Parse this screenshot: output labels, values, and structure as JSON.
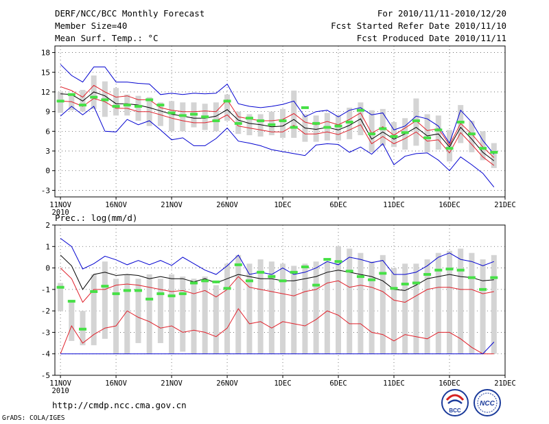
{
  "header": {
    "title_left": "DERF/NCC/BCC Monthly Forecast",
    "member_size": "Member Size=40",
    "variable_label": "Mean Surf. Temp.: °C",
    "forecast_range": "For 2010/11/11-2010/12/20",
    "started_date": "Fcst Started Refer Date 2010/11/10",
    "produced_date": "Fcst Produced Date 2010/11/11"
  },
  "footer": {
    "url": "http://cmdp.ncc.cma.gov.cn",
    "credit": "GrADS: COLA/IGES",
    "logo_bcc_text": "BCC",
    "logo_ncc_text": "NCC"
  },
  "colors": {
    "box": "#d4d4d4",
    "median": "#46e046",
    "mean": "#000000",
    "sd_band": "#e0202a",
    "minmax": "#0000d0",
    "grid": "#555555"
  },
  "chart_data": [
    {
      "id": "temperature",
      "type": "line",
      "title": "Mean Surf. Temp.: °C",
      "xlabel": "",
      "ylabel": "°C",
      "x_tick_labels": [
        "11NOV",
        "16NOV",
        "21NOV",
        "26NOV",
        "1DEC",
        "6DEC",
        "11DEC",
        "16DEC",
        "21DEC"
      ],
      "x_tick_days": [
        0,
        5,
        10,
        15,
        20,
        25,
        30,
        35,
        40
      ],
      "x_year_label": "2010",
      "ylim": [
        -4,
        19
      ],
      "y_ticks": [
        -3,
        0,
        3,
        6,
        9,
        12,
        15,
        18
      ],
      "grid": true,
      "days": [
        0,
        1,
        2,
        3,
        4,
        5,
        6,
        7,
        8,
        9,
        10,
        11,
        12,
        13,
        14,
        15,
        16,
        17,
        18,
        19,
        20,
        21,
        22,
        23,
        24,
        25,
        26,
        27,
        28,
        29,
        30,
        31,
        32,
        33,
        34,
        35,
        36,
        37,
        38,
        39
      ],
      "series": [
        {
          "name": "max",
          "values": [
            16.2,
            14.5,
            13.5,
            15.8,
            15.8,
            13.5,
            13.5,
            13.3,
            13.2,
            11.6,
            11.8,
            11.6,
            11.8,
            11.7,
            11.8,
            13.2,
            10.2,
            9.8,
            9.6,
            9.8,
            10.1,
            10.6,
            8.2,
            9.0,
            9.2,
            8.2,
            9.2,
            9.6,
            8.5,
            8.8,
            6.2,
            6.8,
            8.3,
            7.9,
            6.8,
            4.2,
            9.2,
            7.4,
            4.6,
            2.5
          ]
        },
        {
          "name": "sd_upper",
          "values": [
            12.8,
            12.2,
            11.2,
            13.0,
            12.0,
            11.2,
            11.4,
            10.8,
            10.8,
            9.6,
            9.2,
            9.0,
            9.0,
            9.1,
            9.0,
            10.8,
            8.2,
            7.9,
            7.6,
            7.6,
            7.8,
            8.7,
            7.4,
            7.0,
            7.5,
            7.0,
            7.8,
            8.8,
            5.7,
            6.7,
            5.4,
            6.5,
            7.6,
            6.1,
            6.4,
            3.9,
            7.2,
            5.6,
            3.6,
            2.0
          ]
        },
        {
          "name": "mean",
          "values": [
            11.7,
            11.6,
            10.6,
            12.0,
            11.4,
            10.2,
            10.2,
            10.0,
            9.6,
            9.1,
            8.6,
            8.3,
            8.0,
            8.0,
            8.3,
            9.3,
            7.7,
            7.2,
            7.0,
            6.7,
            6.8,
            7.8,
            6.5,
            6.3,
            6.6,
            6.2,
            6.9,
            7.9,
            4.8,
            5.9,
            4.8,
            5.6,
            6.6,
            5.3,
            5.6,
            3.6,
            6.6,
            4.8,
            2.8,
            1.5
          ]
        },
        {
          "name": "sd_lower",
          "values": [
            10.6,
            10.5,
            9.8,
            11.0,
            10.5,
            9.5,
            9.5,
            9.0,
            9.0,
            8.5,
            8.0,
            7.6,
            7.3,
            7.3,
            7.6,
            8.5,
            6.8,
            6.5,
            6.2,
            5.9,
            5.9,
            6.9,
            5.6,
            5.6,
            5.9,
            5.5,
            6.2,
            7.0,
            4.1,
            5.2,
            4.1,
            4.9,
            5.9,
            4.5,
            4.7,
            2.7,
            5.8,
            4.0,
            2.1,
            0.8
          ]
        },
        {
          "name": "min",
          "values": [
            8.3,
            9.8,
            8.5,
            9.8,
            6.0,
            5.9,
            7.8,
            7.0,
            7.6,
            6.2,
            4.7,
            5.0,
            3.8,
            3.8,
            4.9,
            6.5,
            4.5,
            4.2,
            3.8,
            3.2,
            2.9,
            2.6,
            2.3,
            3.9,
            4.1,
            4.0,
            2.8,
            3.6,
            2.5,
            4.1,
            0.9,
            2.2,
            2.6,
            2.7,
            1.6,
            0.0,
            2.1,
            0.9,
            -0.4,
            -2.5
          ]
        }
      ],
      "boxes": {
        "q_high": [
          12.0,
          11.8,
          12.3,
          14.5,
          13.6,
          12.6,
          11.6,
          11.4,
          11.2,
          10.4,
          10.6,
          10.4,
          10.4,
          10.2,
          10.4,
          11.6,
          9.0,
          8.6,
          8.6,
          9.0,
          9.4,
          12.2,
          8.6,
          8.4,
          8.8,
          8.4,
          9.6,
          10.4,
          9.2,
          9.4,
          7.4,
          8.0,
          11.0,
          8.6,
          8.4,
          6.2,
          10.0,
          7.6,
          6.0,
          4.2
        ],
        "q_low": [
          8.8,
          9.2,
          9.0,
          9.4,
          8.2,
          8.4,
          8.4,
          7.6,
          6.8,
          6.8,
          6.0,
          6.0,
          6.6,
          6.2,
          6.0,
          7.6,
          5.6,
          5.4,
          5.2,
          5.4,
          5.0,
          5.0,
          4.4,
          4.4,
          4.6,
          4.6,
          4.8,
          5.4,
          2.8,
          3.8,
          3.6,
          3.2,
          3.8,
          2.8,
          3.2,
          1.4,
          4.2,
          2.8,
          1.6,
          0.4
        ],
        "median": [
          10.6,
          11.6,
          10.0,
          11.2,
          10.8,
          9.8,
          10.0,
          9.8,
          10.8,
          10.0,
          8.8,
          8.4,
          8.6,
          8.2,
          7.6,
          10.6,
          7.2,
          8.0,
          7.6,
          7.0,
          7.6,
          6.6,
          9.6,
          7.2,
          6.6,
          6.8,
          7.4,
          9.2,
          5.6,
          6.4,
          5.2,
          5.8,
          7.6,
          5.0,
          6.2,
          3.4,
          7.4,
          5.6,
          3.4,
          2.8
        ]
      }
    },
    {
      "id": "precipitation",
      "type": "line",
      "title": "Prec.: log(mm/d)",
      "xlabel": "",
      "ylabel": "log(mm/d)",
      "x_tick_labels": [
        "11NOV",
        "16NOV",
        "21NOV",
        "26NOV",
        "1DEC",
        "6DEC",
        "11DEC",
        "16DEC",
        "21DEC"
      ],
      "x_tick_days": [
        0,
        5,
        10,
        15,
        20,
        25,
        30,
        35,
        40
      ],
      "x_year_label": "2010",
      "ylim": [
        -5,
        2
      ],
      "y_ticks": [
        -5,
        -4,
        -3,
        -2,
        -1,
        0,
        1,
        2
      ],
      "grid": true,
      "days": [
        0,
        1,
        2,
        3,
        4,
        5,
        6,
        7,
        8,
        9,
        10,
        11,
        12,
        13,
        14,
        15,
        16,
        17,
        18,
        19,
        20,
        21,
        22,
        23,
        24,
        25,
        26,
        27,
        28,
        29,
        30,
        31,
        32,
        33,
        34,
        35,
        36,
        37,
        38,
        39
      ],
      "series": [
        {
          "name": "max",
          "values": [
            1.38,
            1.0,
            -0.05,
            0.2,
            0.55,
            0.38,
            0.15,
            0.35,
            0.15,
            0.35,
            0.12,
            0.5,
            0.2,
            -0.1,
            -0.3,
            0.1,
            0.6,
            -0.3,
            -0.2,
            -0.3,
            0.0,
            -0.3,
            -0.2,
            0.0,
            0.3,
            0.15,
            0.5,
            0.4,
            0.25,
            0.35,
            -0.3,
            -0.3,
            -0.2,
            0.1,
            0.5,
            0.7,
            0.4,
            0.3,
            0.1,
            0.3
          ]
        },
        {
          "name": "mean",
          "values": [
            0.6,
            0.1,
            -1.0,
            -0.3,
            -0.2,
            -0.35,
            -0.3,
            -0.35,
            -0.5,
            -0.4,
            -0.5,
            -0.5,
            -0.65,
            -0.5,
            -0.7,
            -0.5,
            -0.3,
            -0.4,
            -0.5,
            -0.5,
            -0.6,
            -0.6,
            -0.5,
            -0.4,
            -0.2,
            -0.1,
            -0.2,
            -0.3,
            -0.4,
            -0.6,
            -1.0,
            -1.05,
            -0.8,
            -0.5,
            -0.4,
            -0.3,
            -0.4,
            -0.45,
            -0.6,
            -0.55
          ]
        },
        {
          "name": "sd_upper",
          "values": [
            0.0,
            -0.5,
            -1.6,
            -1.0,
            -1.0,
            -0.8,
            -0.75,
            -0.8,
            -0.9,
            -1.0,
            -1.1,
            -1.05,
            -1.2,
            -1.05,
            -1.35,
            -1.0,
            -0.4,
            -0.9,
            -1.0,
            -1.1,
            -1.2,
            -1.3,
            -1.1,
            -1.0,
            -0.7,
            -0.6,
            -0.9,
            -0.8,
            -0.9,
            -1.1,
            -1.5,
            -1.6,
            -1.3,
            -1.0,
            -0.9,
            -0.9,
            -1.0,
            -1.0,
            -1.2,
            -1.1
          ]
        },
        {
          "name": "sd_lower",
          "values": [
            -4.0,
            -2.7,
            -3.5,
            -3.1,
            -2.8,
            -2.7,
            -2.0,
            -2.3,
            -2.5,
            -2.8,
            -2.7,
            -3.0,
            -2.9,
            -3.0,
            -3.2,
            -2.8,
            -1.9,
            -2.6,
            -2.5,
            -2.8,
            -2.5,
            -2.6,
            -2.7,
            -2.4,
            -2.0,
            -2.2,
            -2.6,
            -2.6,
            -3.0,
            -3.1,
            -3.4,
            -3.1,
            -3.2,
            -3.3,
            -3.0,
            -3.0,
            -3.3,
            -3.7,
            -4.0,
            -4.0
          ]
        },
        {
          "name": "min",
          "values": [
            -4.0,
            -4.0,
            -4.0,
            -4.0,
            -4.0,
            -4.0,
            -4.0,
            -4.0,
            -4.0,
            -4.0,
            -4.0,
            -4.0,
            -4.0,
            -4.0,
            -4.0,
            -4.0,
            -4.0,
            -4.0,
            -4.0,
            -4.0,
            -4.0,
            -4.0,
            -4.0,
            -4.0,
            -4.0,
            -4.0,
            -4.0,
            -4.0,
            -4.0,
            -4.0,
            -4.0,
            -4.0,
            -4.0,
            -4.0,
            -4.0,
            -4.0,
            -4.0,
            -4.0,
            -4.0,
            -3.45
          ]
        }
      ],
      "boxes": {
        "q_high": [
          -0.7,
          -1.5,
          -2.0,
          -0.3,
          0.3,
          -0.5,
          -0.3,
          -0.5,
          -0.3,
          -0.5,
          -0.3,
          -0.4,
          -0.5,
          -0.4,
          -0.8,
          0.2,
          0.6,
          0.2,
          0.4,
          0.3,
          0.2,
          0.1,
          0.2,
          0.3,
          0.3,
          1.0,
          0.9,
          0.7,
          0.3,
          0.6,
          0.0,
          0.2,
          0.2,
          0.4,
          0.7,
          0.8,
          0.9,
          0.7,
          0.4,
          0.6
        ],
        "q_low": [
          -2.0,
          -3.4,
          -3.6,
          -3.6,
          -3.3,
          -4.0,
          -4.0,
          -3.5,
          -4.0,
          -3.5,
          -4.0,
          -3.9,
          -4.0,
          -4.0,
          -4.0,
          -4.0,
          -4.0,
          -4.0,
          -4.0,
          -4.0,
          -4.0,
          -4.0,
          -4.0,
          -4.0,
          -4.0,
          -4.0,
          -4.0,
          -4.0,
          -4.0,
          -4.0,
          -4.0,
          -4.0,
          -4.0,
          -4.0,
          -4.0,
          -4.0,
          -4.0,
          -4.0,
          -4.0,
          -4.0
        ],
        "median": [
          -0.9,
          -1.55,
          -2.85,
          -1.1,
          -0.85,
          -1.2,
          -1.05,
          -1.05,
          -1.45,
          -1.2,
          -1.3,
          -1.2,
          -0.7,
          -0.6,
          -0.65,
          -0.95,
          0.15,
          -0.6,
          -0.2,
          -0.4,
          -0.6,
          -0.2,
          0.05,
          -0.8,
          0.4,
          0.3,
          -0.15,
          -0.4,
          -0.55,
          -0.25,
          -0.95,
          -0.75,
          -0.7,
          -0.3,
          -0.1,
          -0.05,
          -0.1,
          -0.45,
          -1.0,
          -0.45
        ]
      }
    }
  ]
}
